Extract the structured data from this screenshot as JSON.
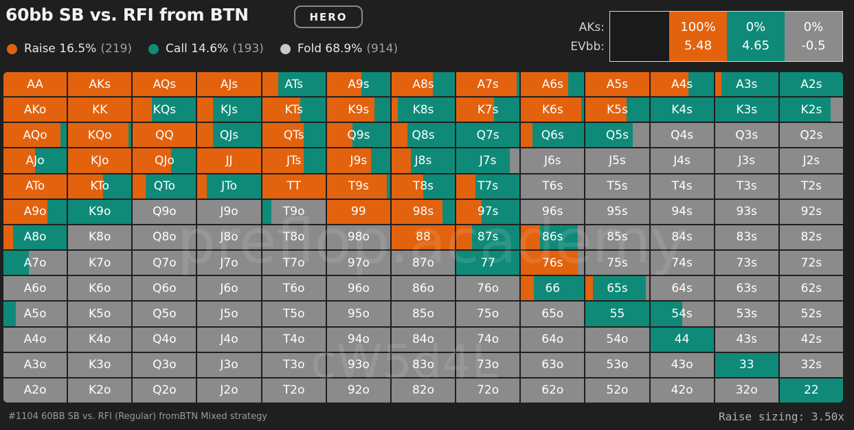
{
  "header": {
    "title": "60bb SB vs. RFI from BTN",
    "tag": "HERO"
  },
  "colors": {
    "raise": "#e3620e",
    "call": "#0f8a79",
    "fold": "#8b8b8b"
  },
  "legend": [
    {
      "label": "Raise 16.5%",
      "count": "(219)"
    },
    {
      "label": "Call 14.6%",
      "count": "(193)"
    },
    {
      "label": "Fold 68.9%",
      "count": "(914)"
    }
  ],
  "selected": {
    "hand_label": "AKs:",
    "ev_label": "EVbb:",
    "raise": {
      "pct": "100%",
      "ev": "5.48"
    },
    "call": {
      "pct": "0%",
      "ev": "4.65"
    },
    "fold": {
      "pct": "0%",
      "ev": "-0.5"
    }
  },
  "watermarks": [
    "preflop.academy",
    "cW5d4L"
  ],
  "footer": {
    "left": "#1104 60BB SB vs. RFI (Regular) fromBTN Mixed strategy",
    "right": "Raise sizing: 3.50x"
  },
  "grid": [
    [
      {
        "h": "AA",
        "r": 100,
        "c": 0
      },
      {
        "h": "AKs",
        "r": 100,
        "c": 0
      },
      {
        "h": "AQs",
        "r": 100,
        "c": 0
      },
      {
        "h": "AJs",
        "r": 100,
        "c": 0
      },
      {
        "h": "ATs",
        "r": 25,
        "c": 75
      },
      {
        "h": "A9s",
        "r": 55,
        "c": 45
      },
      {
        "h": "A8s",
        "r": 65,
        "c": 35
      },
      {
        "h": "A7s",
        "r": 95,
        "c": 5
      },
      {
        "h": "A6s",
        "r": 75,
        "c": 25
      },
      {
        "h": "A5s",
        "r": 100,
        "c": 0
      },
      {
        "h": "A4s",
        "r": 60,
        "c": 40
      },
      {
        "h": "A3s",
        "r": 10,
        "c": 90
      },
      {
        "h": "A2s",
        "r": 0,
        "c": 100
      }
    ],
    [
      {
        "h": "AKo",
        "r": 100,
        "c": 0
      },
      {
        "h": "KK",
        "r": 100,
        "c": 0
      },
      {
        "h": "KQs",
        "r": 30,
        "c": 70
      },
      {
        "h": "KJs",
        "r": 25,
        "c": 75
      },
      {
        "h": "KTs",
        "r": 60,
        "c": 40
      },
      {
        "h": "K9s",
        "r": 75,
        "c": 25
      },
      {
        "h": "K8s",
        "r": 10,
        "c": 90
      },
      {
        "h": "K7s",
        "r": 60,
        "c": 40
      },
      {
        "h": "K6s",
        "r": 95,
        "c": 5
      },
      {
        "h": "K5s",
        "r": 65,
        "c": 35
      },
      {
        "h": "K4s",
        "r": 0,
        "c": 100
      },
      {
        "h": "K3s",
        "r": 0,
        "c": 100
      },
      {
        "h": "K2s",
        "r": 0,
        "c": 80
      }
    ],
    [
      {
        "h": "AQo",
        "r": 90,
        "c": 10
      },
      {
        "h": "KQo",
        "r": 95,
        "c": 5
      },
      {
        "h": "QQ",
        "r": 100,
        "c": 0
      },
      {
        "h": "QJs",
        "r": 25,
        "c": 75
      },
      {
        "h": "QTs",
        "r": 65,
        "c": 35
      },
      {
        "h": "Q9s",
        "r": 40,
        "c": 60
      },
      {
        "h": "Q8s",
        "r": 25,
        "c": 75
      },
      {
        "h": "Q7s",
        "r": 0,
        "c": 100
      },
      {
        "h": "Q6s",
        "r": 18,
        "c": 82
      },
      {
        "h": "Q5s",
        "r": 0,
        "c": 75
      },
      {
        "h": "Q4s",
        "r": 0,
        "c": 0
      },
      {
        "h": "Q3s",
        "r": 0,
        "c": 0
      },
      {
        "h": "Q2s",
        "r": 0,
        "c": 0
      }
    ],
    [
      {
        "h": "AJo",
        "r": 50,
        "c": 50
      },
      {
        "h": "KJo",
        "r": 100,
        "c": 0
      },
      {
        "h": "QJo",
        "r": 60,
        "c": 40
      },
      {
        "h": "JJ",
        "r": 100,
        "c": 0
      },
      {
        "h": "JTs",
        "r": 65,
        "c": 35
      },
      {
        "h": "J9s",
        "r": 70,
        "c": 30
      },
      {
        "h": "J8s",
        "r": 30,
        "c": 70
      },
      {
        "h": "J7s",
        "r": 0,
        "c": 85
      },
      {
        "h": "J6s",
        "r": 0,
        "c": 0
      },
      {
        "h": "J5s",
        "r": 0,
        "c": 0
      },
      {
        "h": "J4s",
        "r": 0,
        "c": 0
      },
      {
        "h": "J3s",
        "r": 0,
        "c": 0
      },
      {
        "h": "J2s",
        "r": 0,
        "c": 0
      }
    ],
    [
      {
        "h": "ATo",
        "r": 100,
        "c": 0
      },
      {
        "h": "KTo",
        "r": 55,
        "c": 45
      },
      {
        "h": "QTo",
        "r": 20,
        "c": 80
      },
      {
        "h": "JTo",
        "r": 15,
        "c": 85
      },
      {
        "h": "TT",
        "r": 100,
        "c": 0
      },
      {
        "h": "T9s",
        "r": 95,
        "c": 5
      },
      {
        "h": "T8s",
        "r": 50,
        "c": 50
      },
      {
        "h": "T7s",
        "r": 30,
        "c": 70
      },
      {
        "h": "T6s",
        "r": 0,
        "c": 0
      },
      {
        "h": "T5s",
        "r": 0,
        "c": 0
      },
      {
        "h": "T4s",
        "r": 0,
        "c": 0
      },
      {
        "h": "T3s",
        "r": 0,
        "c": 0
      },
      {
        "h": "T2s",
        "r": 0,
        "c": 0
      }
    ],
    [
      {
        "h": "A9o",
        "r": 70,
        "c": 30
      },
      {
        "h": "K9o",
        "r": 0,
        "c": 100
      },
      {
        "h": "Q9o",
        "r": 0,
        "c": 0
      },
      {
        "h": "J9o",
        "r": 0,
        "c": 0
      },
      {
        "h": "T9o",
        "r": 0,
        "c": 15
      },
      {
        "h": "99",
        "r": 100,
        "c": 0
      },
      {
        "h": "98s",
        "r": 80,
        "c": 20
      },
      {
        "h": "97s",
        "r": 40,
        "c": 60
      },
      {
        "h": "96s",
        "r": 0,
        "c": 0
      },
      {
        "h": "95s",
        "r": 0,
        "c": 0
      },
      {
        "h": "94s",
        "r": 0,
        "c": 0
      },
      {
        "h": "93s",
        "r": 0,
        "c": 0
      },
      {
        "h": "92s",
        "r": 0,
        "c": 0
      }
    ],
    [
      {
        "h": "A8o",
        "r": 15,
        "c": 85
      },
      {
        "h": "K8o",
        "r": 0,
        "c": 0
      },
      {
        "h": "Q8o",
        "r": 0,
        "c": 0
      },
      {
        "h": "J8o",
        "r": 0,
        "c": 0
      },
      {
        "h": "T8o",
        "r": 0,
        "c": 0
      },
      {
        "h": "98o",
        "r": 0,
        "c": 0
      },
      {
        "h": "88",
        "r": 100,
        "c": 0
      },
      {
        "h": "87s",
        "r": 25,
        "c": 75
      },
      {
        "h": "86s",
        "r": 30,
        "c": 60
      },
      {
        "h": "85s",
        "r": 0,
        "c": 0
      },
      {
        "h": "84s",
        "r": 0,
        "c": 0
      },
      {
        "h": "83s",
        "r": 0,
        "c": 0
      },
      {
        "h": "82s",
        "r": 0,
        "c": 0
      }
    ],
    [
      {
        "h": "A7o",
        "r": 0,
        "c": 40
      },
      {
        "h": "K7o",
        "r": 0,
        "c": 0
      },
      {
        "h": "Q7o",
        "r": 0,
        "c": 0
      },
      {
        "h": "J7o",
        "r": 0,
        "c": 0
      },
      {
        "h": "T7o",
        "r": 0,
        "c": 0
      },
      {
        "h": "97o",
        "r": 0,
        "c": 0
      },
      {
        "h": "87o",
        "r": 0,
        "c": 0
      },
      {
        "h": "77",
        "r": 0,
        "c": 100
      },
      {
        "h": "76s",
        "r": 90,
        "c": 0
      },
      {
        "h": "75s",
        "r": 0,
        "c": 0
      },
      {
        "h": "74s",
        "r": 0,
        "c": 0
      },
      {
        "h": "73s",
        "r": 0,
        "c": 0
      },
      {
        "h": "72s",
        "r": 0,
        "c": 0
      }
    ],
    [
      {
        "h": "A6o",
        "r": 0,
        "c": 0
      },
      {
        "h": "K6o",
        "r": 0,
        "c": 0
      },
      {
        "h": "Q6o",
        "r": 0,
        "c": 0
      },
      {
        "h": "J6o",
        "r": 0,
        "c": 0
      },
      {
        "h": "T6o",
        "r": 0,
        "c": 0
      },
      {
        "h": "96o",
        "r": 0,
        "c": 0
      },
      {
        "h": "86o",
        "r": 0,
        "c": 0
      },
      {
        "h": "76o",
        "r": 0,
        "c": 0
      },
      {
        "h": "66",
        "r": 20,
        "c": 80
      },
      {
        "h": "65s",
        "r": 12,
        "c": 83
      },
      {
        "h": "64s",
        "r": 0,
        "c": 0
      },
      {
        "h": "63s",
        "r": 0,
        "c": 0
      },
      {
        "h": "62s",
        "r": 0,
        "c": 0
      }
    ],
    [
      {
        "h": "A5o",
        "r": 0,
        "c": 20
      },
      {
        "h": "K5o",
        "r": 0,
        "c": 0
      },
      {
        "h": "Q5o",
        "r": 0,
        "c": 0
      },
      {
        "h": "J5o",
        "r": 0,
        "c": 0
      },
      {
        "h": "T5o",
        "r": 0,
        "c": 0
      },
      {
        "h": "95o",
        "r": 0,
        "c": 0
      },
      {
        "h": "85o",
        "r": 0,
        "c": 0
      },
      {
        "h": "75o",
        "r": 0,
        "c": 0
      },
      {
        "h": "65o",
        "r": 0,
        "c": 0
      },
      {
        "h": "55",
        "r": 0,
        "c": 100
      },
      {
        "h": "54s",
        "r": 0,
        "c": 50
      },
      {
        "h": "53s",
        "r": 0,
        "c": 0
      },
      {
        "h": "52s",
        "r": 0,
        "c": 0
      }
    ],
    [
      {
        "h": "A4o",
        "r": 0,
        "c": 0
      },
      {
        "h": "K4o",
        "r": 0,
        "c": 0
      },
      {
        "h": "Q4o",
        "r": 0,
        "c": 0
      },
      {
        "h": "J4o",
        "r": 0,
        "c": 0
      },
      {
        "h": "T4o",
        "r": 0,
        "c": 0
      },
      {
        "h": "94o",
        "r": 0,
        "c": 0
      },
      {
        "h": "84o",
        "r": 0,
        "c": 0
      },
      {
        "h": "74o",
        "r": 0,
        "c": 0
      },
      {
        "h": "64o",
        "r": 0,
        "c": 0
      },
      {
        "h": "54o",
        "r": 0,
        "c": 0
      },
      {
        "h": "44",
        "r": 0,
        "c": 100
      },
      {
        "h": "43s",
        "r": 0,
        "c": 0
      },
      {
        "h": "42s",
        "r": 0,
        "c": 0
      }
    ],
    [
      {
        "h": "A3o",
        "r": 0,
        "c": 0
      },
      {
        "h": "K3o",
        "r": 0,
        "c": 0
      },
      {
        "h": "Q3o",
        "r": 0,
        "c": 0
      },
      {
        "h": "J3o",
        "r": 0,
        "c": 0
      },
      {
        "h": "T3o",
        "r": 0,
        "c": 0
      },
      {
        "h": "93o",
        "r": 0,
        "c": 0
      },
      {
        "h": "83o",
        "r": 0,
        "c": 0
      },
      {
        "h": "73o",
        "r": 0,
        "c": 0
      },
      {
        "h": "63o",
        "r": 0,
        "c": 0
      },
      {
        "h": "53o",
        "r": 0,
        "c": 0
      },
      {
        "h": "43o",
        "r": 0,
        "c": 0
      },
      {
        "h": "33",
        "r": 0,
        "c": 100
      },
      {
        "h": "32s",
        "r": 0,
        "c": 0
      }
    ],
    [
      {
        "h": "A2o",
        "r": 0,
        "c": 0
      },
      {
        "h": "K2o",
        "r": 0,
        "c": 0
      },
      {
        "h": "Q2o",
        "r": 0,
        "c": 0
      },
      {
        "h": "J2o",
        "r": 0,
        "c": 0
      },
      {
        "h": "T2o",
        "r": 0,
        "c": 0
      },
      {
        "h": "92o",
        "r": 0,
        "c": 0
      },
      {
        "h": "82o",
        "r": 0,
        "c": 0
      },
      {
        "h": "72o",
        "r": 0,
        "c": 0
      },
      {
        "h": "62o",
        "r": 0,
        "c": 0
      },
      {
        "h": "52o",
        "r": 0,
        "c": 0
      },
      {
        "h": "42o",
        "r": 0,
        "c": 0
      },
      {
        "h": "32o",
        "r": 0,
        "c": 0
      },
      {
        "h": "22",
        "r": 0,
        "c": 100
      }
    ]
  ]
}
